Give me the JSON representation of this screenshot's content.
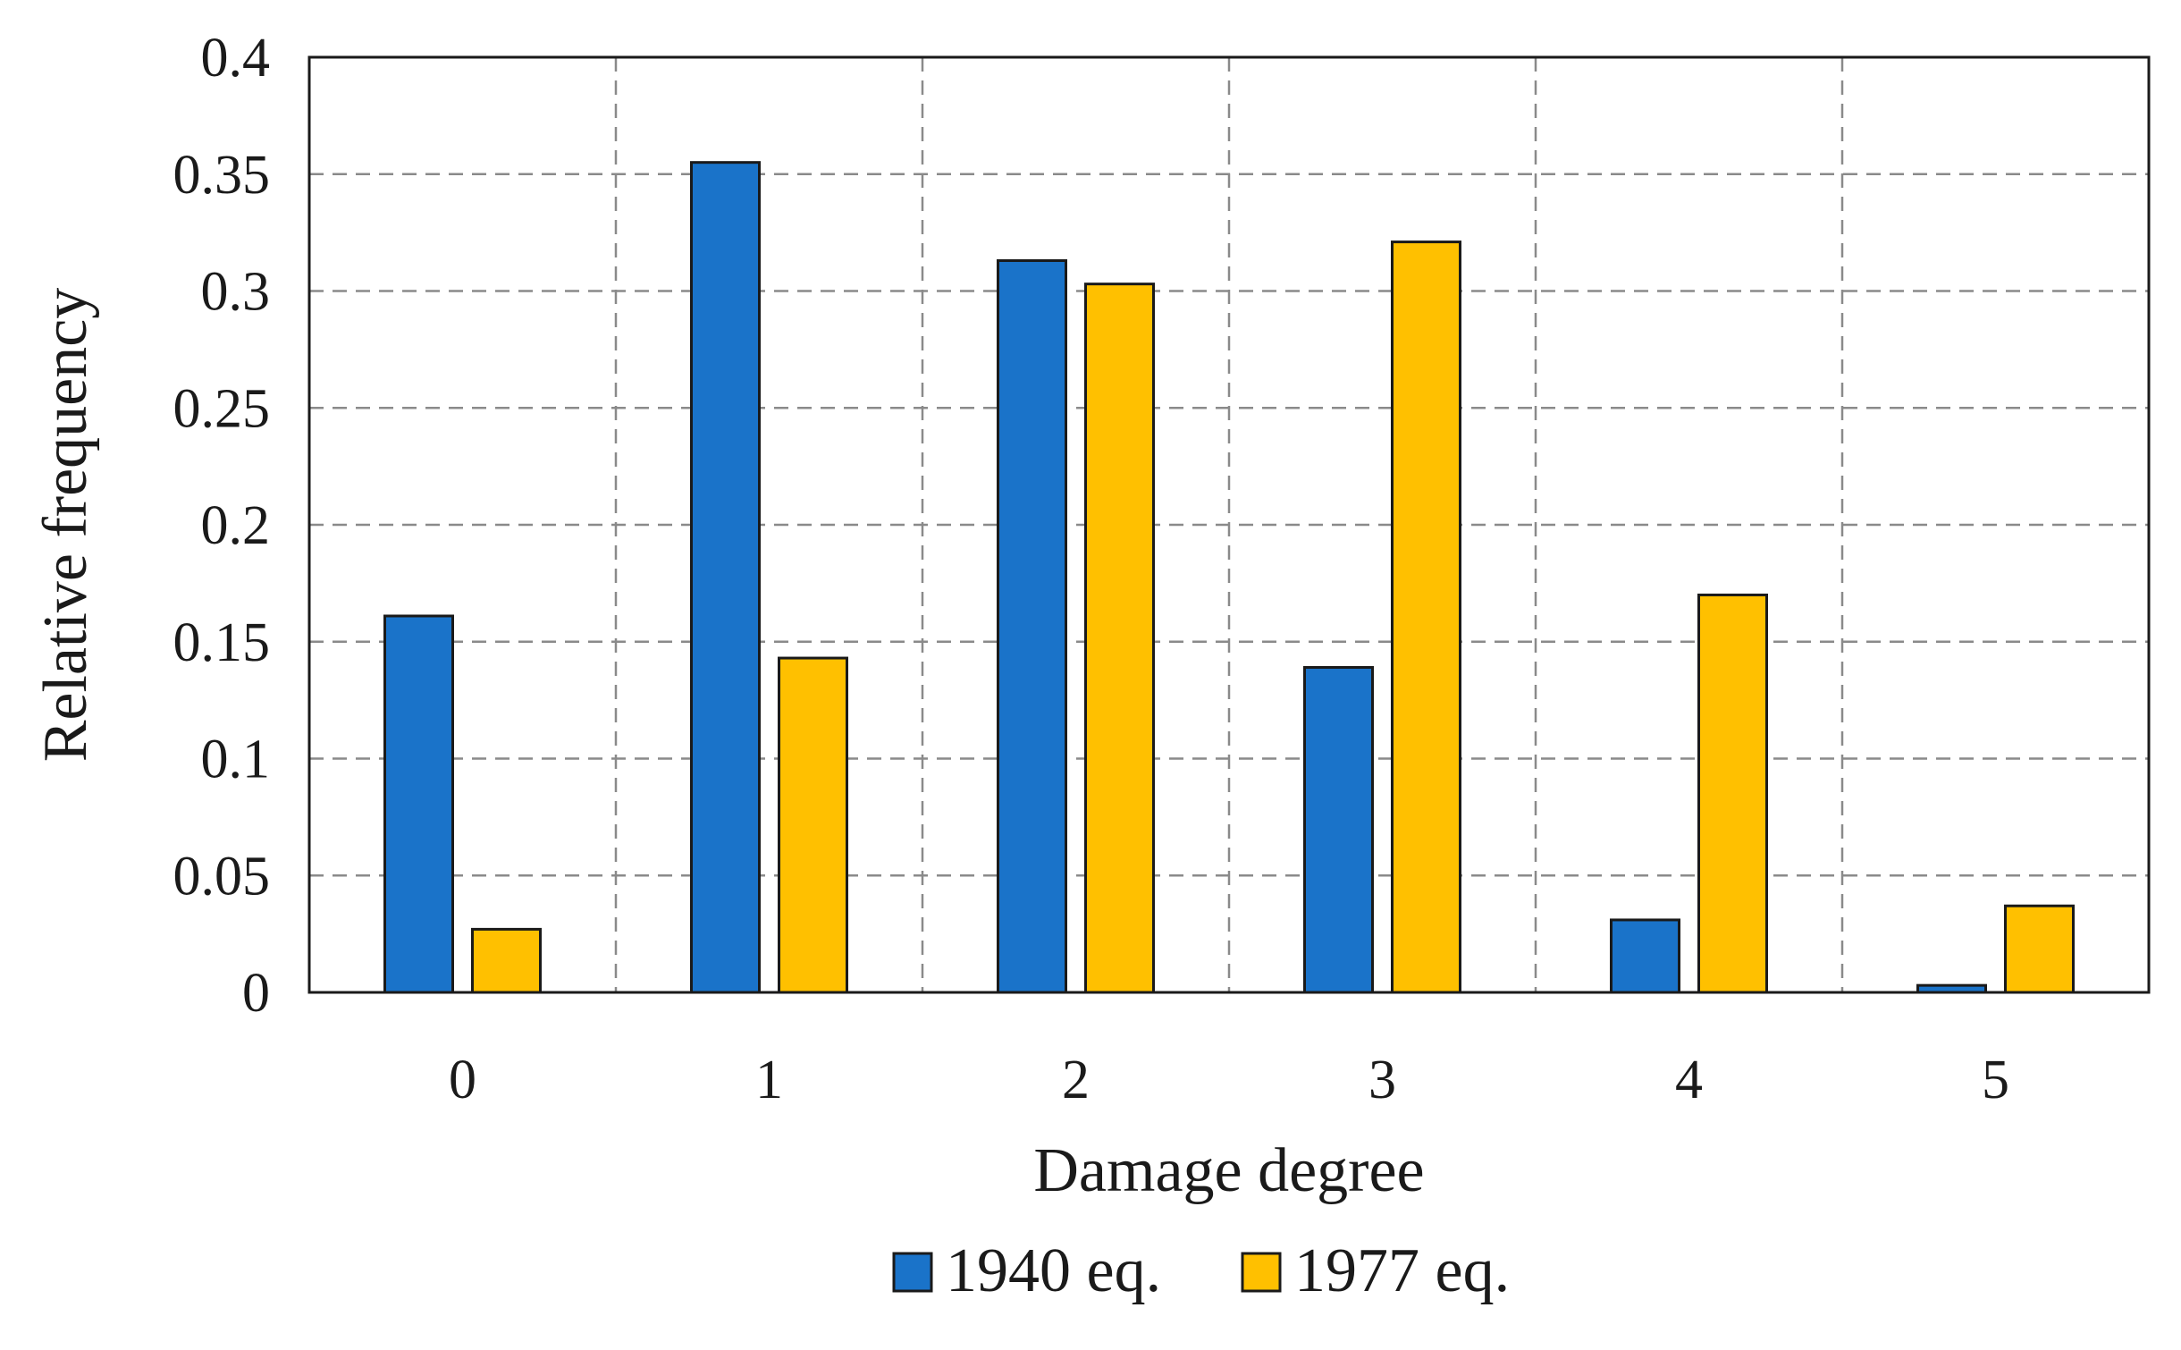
{
  "chart_data": {
    "type": "bar",
    "title": "",
    "xlabel": "Damage degree",
    "ylabel": "Relative frequency",
    "categories": [
      "0",
      "1",
      "2",
      "3",
      "4",
      "5"
    ],
    "series": [
      {
        "name": "1940 eq.",
        "color": "#1a73c9",
        "values": [
          0.161,
          0.355,
          0.313,
          0.139,
          0.031,
          0.003
        ]
      },
      {
        "name": "1977 eq.",
        "color": "#ffc000",
        "values": [
          0.027,
          0.143,
          0.303,
          0.321,
          0.17,
          0.037
        ]
      }
    ],
    "ylim": [
      0,
      0.4
    ],
    "yticks": [
      0,
      0.05,
      0.1,
      0.15,
      0.2,
      0.25,
      0.3,
      0.35,
      0.4
    ],
    "ytick_labels": [
      "0",
      "0.05",
      "0.1",
      "0.15",
      "0.2",
      "0.25",
      "0.3",
      "0.35",
      "0.4"
    ],
    "grid": true,
    "legend_position": "bottom-center"
  }
}
